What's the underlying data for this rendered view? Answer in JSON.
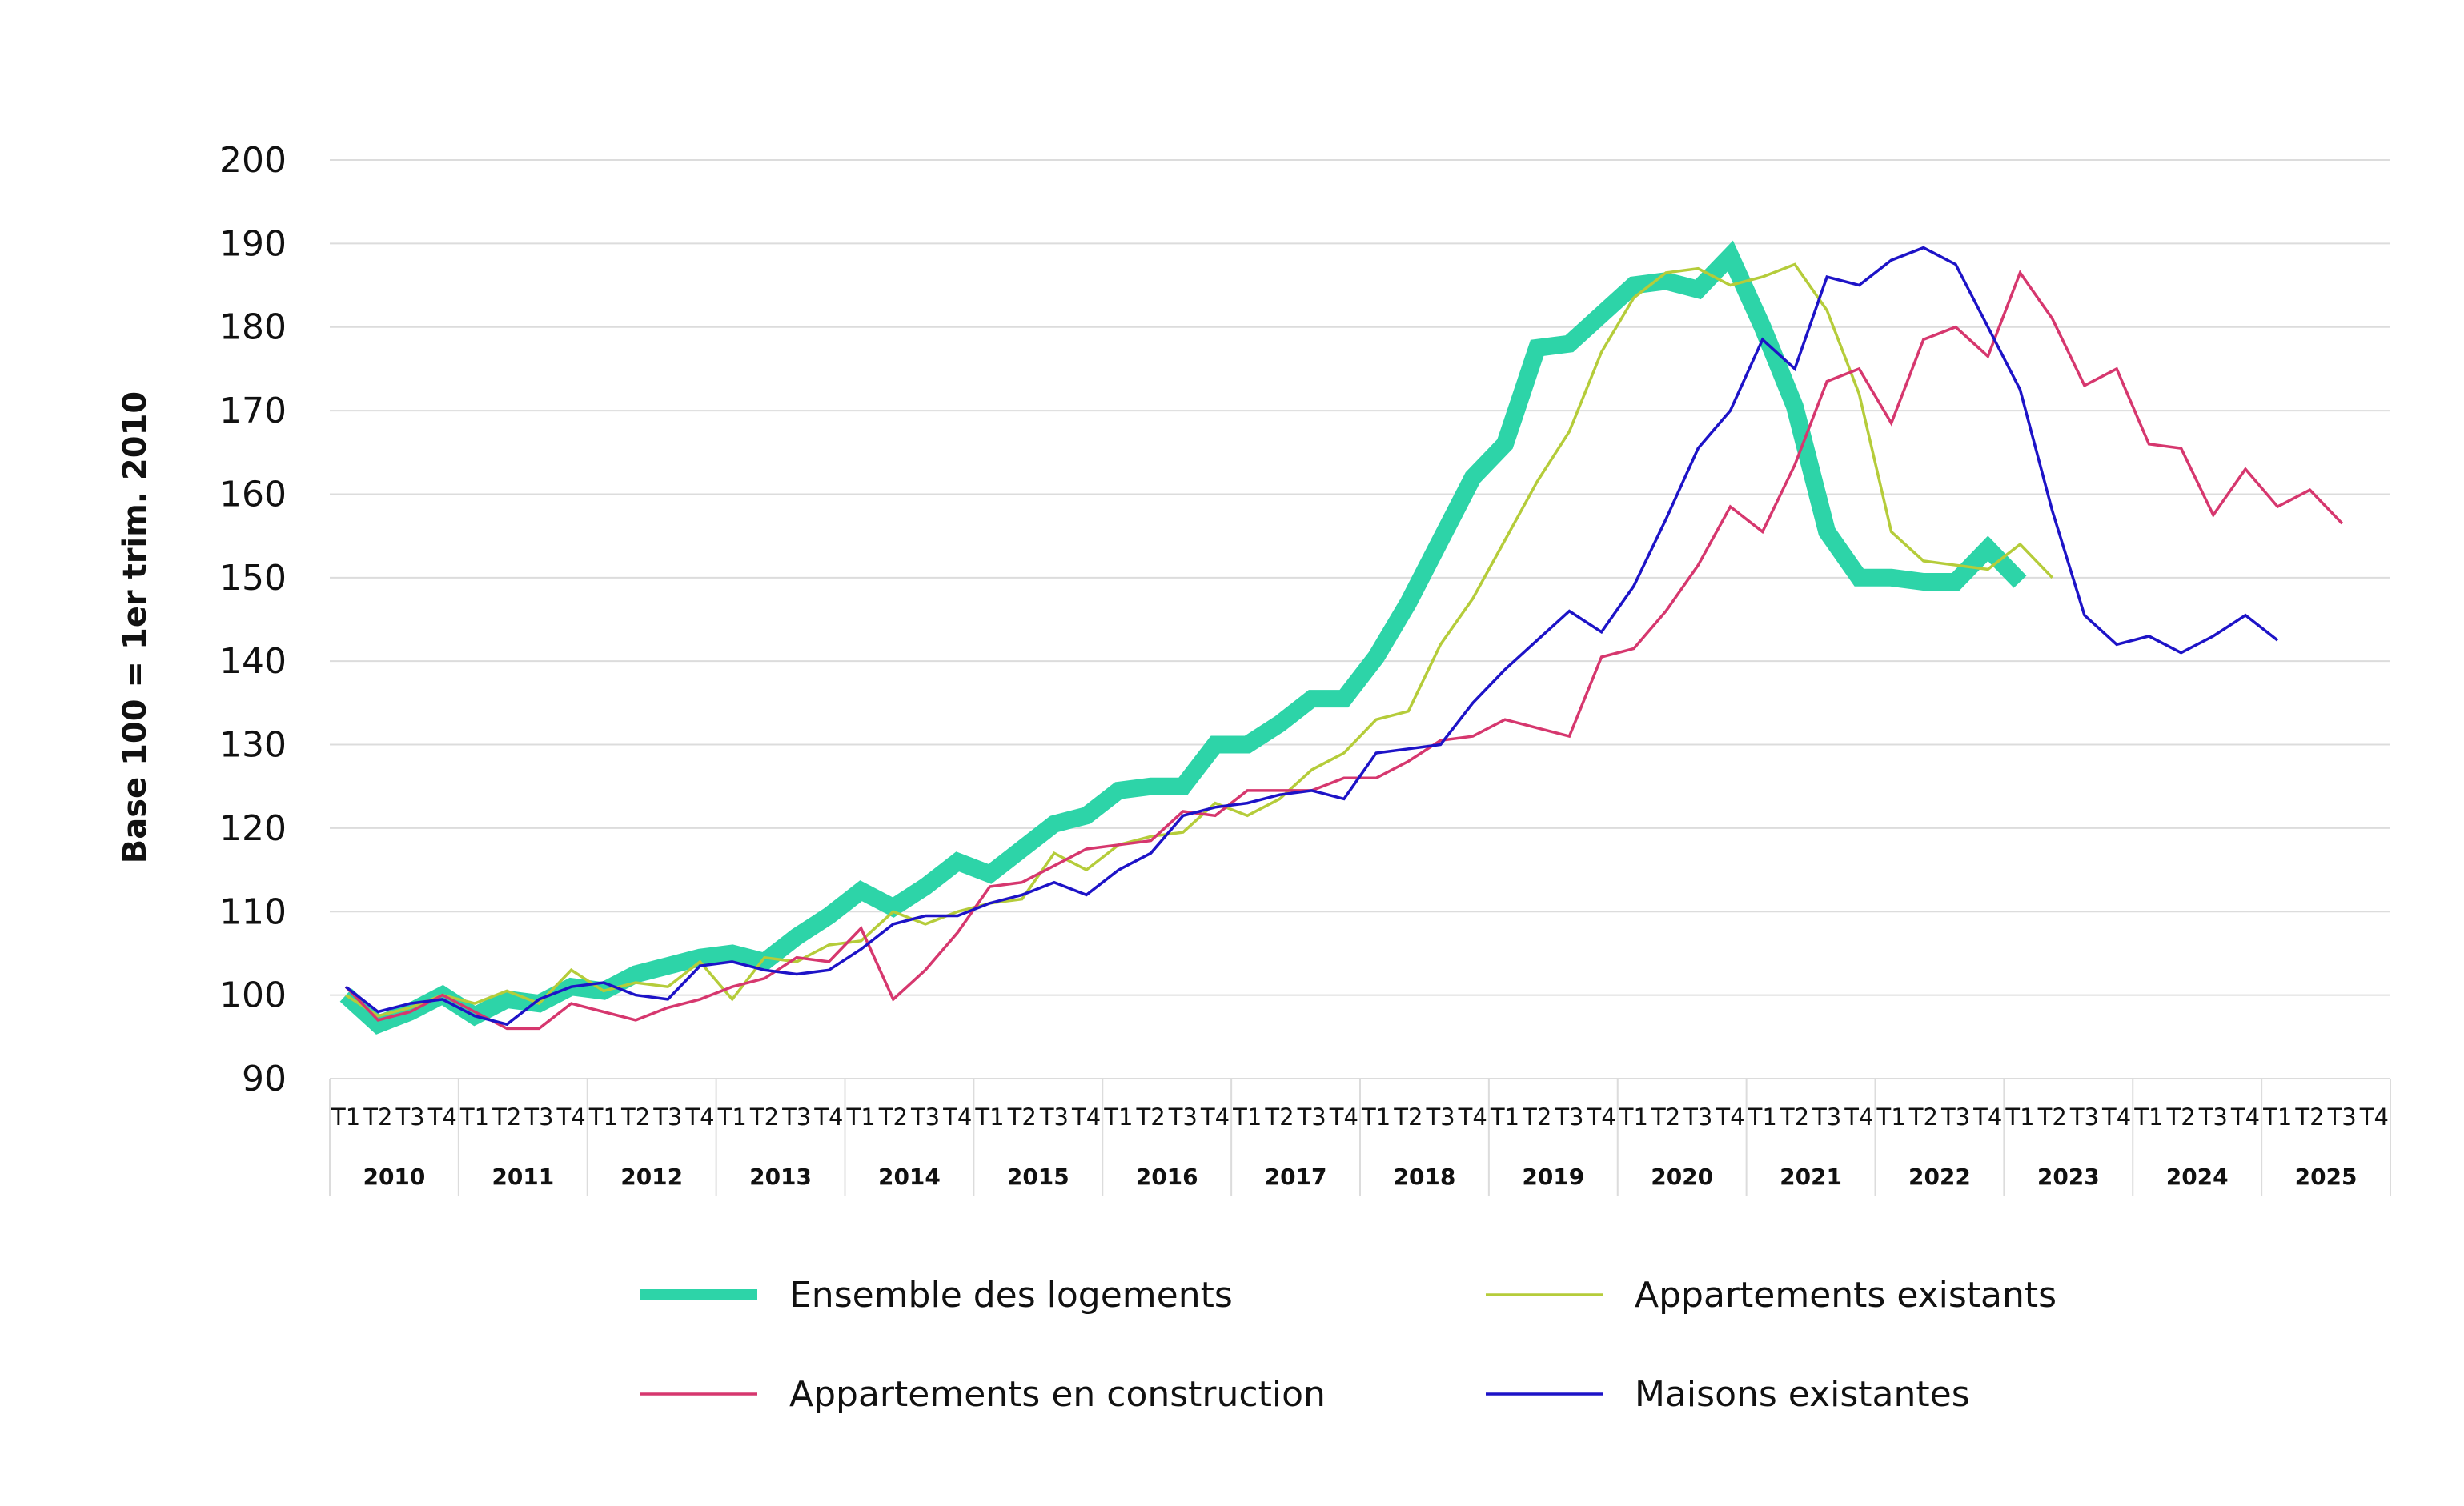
{
  "chart_data": {
    "type": "line",
    "ylabel": "Base 100 = 1er trim. 2010",
    "ylim": [
      90,
      200
    ],
    "yticks": [
      200,
      190,
      180,
      170,
      160,
      150,
      140,
      130,
      120,
      110,
      100,
      90
    ],
    "quarter_labels": [
      "T1",
      "T2",
      "T3",
      "T4"
    ],
    "years": [
      "2010",
      "2011",
      "2012",
      "2013",
      "2014",
      "2015",
      "2016",
      "2017",
      "2018",
      "2019",
      "2020",
      "2021",
      "2022",
      "2023",
      "2024",
      "2025"
    ],
    "grid": true,
    "legend": "bottom",
    "series": [
      {
        "name": "Ensemble des logements",
        "color": "#2dd4a8",
        "values": [
          100,
          96.5,
          98,
          100,
          97.5,
          99.5,
          99,
          101,
          100.5,
          102.5,
          103.5,
          104.5,
          105,
          104,
          107,
          109.5,
          112.5,
          110.5,
          113,
          116,
          114.5,
          117.5,
          120.5,
          121.5,
          124.5,
          125,
          125,
          130,
          130,
          132.5,
          135.5,
          135.5,
          140.5,
          147,
          154.5,
          162,
          166,
          177.5,
          178,
          181.5,
          185,
          185.5,
          184.5,
          188.5,
          180,
          170.5,
          155.5,
          150,
          150,
          149.5,
          149.5,
          153.5,
          149.5
        ]
      },
      {
        "name": "Appartements existants",
        "color": "#b5cc3a",
        "values": [
          100,
          97.5,
          98.5,
          100,
          99,
          100.5,
          99,
          103,
          100.5,
          101.5,
          101,
          104,
          99.5,
          104.5,
          104,
          106,
          106.5,
          110,
          108.5,
          110,
          111,
          111.5,
          117,
          115,
          118,
          119,
          119.5,
          123,
          121.5,
          123.5,
          127,
          129,
          133,
          134,
          142,
          147.5,
          154.5,
          161.5,
          167.5,
          177,
          183.5,
          186.5,
          187,
          185,
          186,
          187.5,
          182,
          172,
          155.5,
          152,
          151.5,
          151,
          154,
          150
        ]
      },
      {
        "name": "Appartements en construction",
        "color": "#d6376e",
        "values": [
          101,
          97,
          98,
          100,
          98,
          96,
          96,
          99,
          98,
          97,
          98.5,
          99.5,
          101,
          102,
          104.5,
          104,
          108,
          99.5,
          103,
          107.5,
          113,
          113.5,
          115.5,
          117.5,
          118,
          118.5,
          122,
          121.5,
          124.5,
          124.5,
          124.5,
          126,
          126,
          128,
          130.5,
          131,
          133,
          132,
          131,
          140.5,
          141.5,
          146,
          151.5,
          158.5,
          155.5,
          163.5,
          173.5,
          175,
          168.5,
          178.5,
          180,
          176.5,
          186.5,
          181,
          173,
          175,
          166,
          165.5,
          157.5,
          163,
          158.5,
          160.5,
          156.5
        ]
      },
      {
        "name": "Maisons existantes",
        "color": "#1d13c7",
        "values": [
          101,
          98,
          99,
          99.5,
          97.5,
          96.5,
          99.5,
          101,
          101.5,
          100,
          99.5,
          103.5,
          104,
          103,
          102.5,
          103,
          105.5,
          108.5,
          109.5,
          109.5,
          111,
          112,
          113.5,
          112,
          115,
          117,
          121.5,
          122.5,
          123,
          124,
          124.5,
          123.5,
          129,
          129.5,
          130,
          135,
          139,
          142.5,
          146,
          143.5,
          149,
          157,
          165.5,
          170,
          178.5,
          175,
          186,
          185,
          188,
          189.5,
          187.5,
          180,
          172.5,
          158,
          145.5,
          142,
          143,
          141,
          143,
          145.5,
          142.5
        ]
      }
    ]
  }
}
